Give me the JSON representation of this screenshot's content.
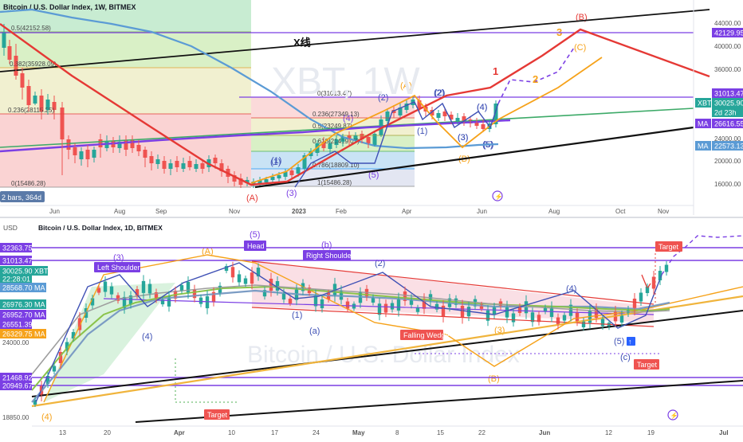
{
  "colors": {
    "up": "#26a69a",
    "down": "#ef5350",
    "purple": "#7b3fe4",
    "ma_green": "#4caf50",
    "ma_blue": "#5b9bd5",
    "wave_red": "#e53935",
    "wave_orange": "#f6a21a",
    "axis_text": "#131722",
    "fib_red": "#f4b5b5",
    "fib_green": "#d9f0c6",
    "fib_blue": "#c9e3f5"
  },
  "top_panel": {
    "title": "Bitcoin / U.S. Dollar Index, 1W, BITMEX",
    "watermark": "XBT, 1W",
    "x_tick_labels": [
      "Jun",
      "Aug",
      "Sep",
      "Nov",
      "2023",
      "Feb",
      "Apr",
      "Jun",
      "Aug",
      "Oct",
      "Nov"
    ],
    "y_tick_labels": [
      "44000.00",
      "40000.00",
      "36000.00",
      "24000.00",
      "20000.00",
      "16000.00"
    ],
    "price_tags": [
      {
        "text": "42129.95",
        "kind": "purple"
      },
      {
        "text": "31013.47",
        "kind": "purple"
      },
      {
        "text": "XBT",
        "kind": "green_label"
      },
      {
        "text": "30025.90",
        "kind": "green"
      },
      {
        "text": "2d 23h",
        "kind": "green"
      },
      {
        "text": "MA",
        "kind": "purple_label"
      },
      {
        "text": "26616.55",
        "kind": "purple"
      },
      {
        "text": "MA",
        "kind": "blue_label"
      },
      {
        "text": "22573.13",
        "kind": "blue"
      }
    ],
    "fib_labels_left": [
      "0.5(42152.58)",
      "0.382(35928.09)",
      "0.236(28115.25)",
      "0(15486.28)"
    ],
    "fib_labels_right": [
      "0(31013.47)",
      "0.236(27349.13)",
      "0.5(23249.87)",
      "0.618(21419.07)",
      "0.786(18809.10)",
      "1(15486.28)"
    ],
    "x_line_label": "X线",
    "wave_labels": [
      "(A)",
      "(B)",
      "(C)",
      "(1)",
      "(2)",
      "(3)",
      "(4)",
      "(5)",
      "1",
      "2",
      "3",
      "(A)",
      "(1)",
      "(2)",
      "(3)",
      "(4)",
      "(5)",
      "(B)",
      "(1)",
      "(2)",
      "(3)",
      "(4)",
      "(5)"
    ],
    "bars_badge": "2 bars, 364d"
  },
  "bottom_panel": {
    "title": "Bitcoin / U.S. Dollar Index, 1D, BITMEX",
    "currency": "USD",
    "watermark": "Bitcoin / U.S. Dollar Index",
    "x_tick_labels": [
      "13",
      "20",
      "Apr",
      "10",
      "17",
      "24",
      "May",
      "8",
      "15",
      "22",
      "Jun",
      "12",
      "19",
      "Jul"
    ],
    "y_tick_labels": [
      "24000.00",
      "18850.00"
    ],
    "price_tags": [
      {
        "text": "32363.75",
        "kind": "purple"
      },
      {
        "text": "31013.47",
        "kind": "purple"
      },
      {
        "text": "XBT",
        "kind": "green_label"
      },
      {
        "text": "30025.90",
        "kind": "green"
      },
      {
        "text": "22:28:01",
        "kind": "green"
      },
      {
        "text": "MA",
        "kind": "blue_label"
      },
      {
        "text": "28568.70",
        "kind": "blue"
      },
      {
        "text": "MA",
        "kind": "green_label"
      },
      {
        "text": "26976.30",
        "kind": "green"
      },
      {
        "text": "MA",
        "kind": "purple_label"
      },
      {
        "text": "26952.70",
        "kind": "purple"
      },
      {
        "text": "26551.39",
        "kind": "purple"
      },
      {
        "text": "MA",
        "kind": "orange_label"
      },
      {
        "text": "26329.75",
        "kind": "orange"
      },
      {
        "text": "21468.92",
        "kind": "purple"
      },
      {
        "text": "20949.67",
        "kind": "purple"
      }
    ],
    "annotation_labels": {
      "head": "Head",
      "left_shoulder": "Left Shoulder",
      "right_shoulder": "Right Shoulder",
      "falling_wedge": "Falling Wedge",
      "target": "Target"
    },
    "wave_labels": [
      "(5)",
      "(A)",
      "(b)",
      "(3)",
      "(1)",
      "(a)",
      "(4)",
      "(2)",
      "(3)",
      "(4)",
      "(5)",
      "(c)",
      "(B)",
      "(4)"
    ]
  }
}
